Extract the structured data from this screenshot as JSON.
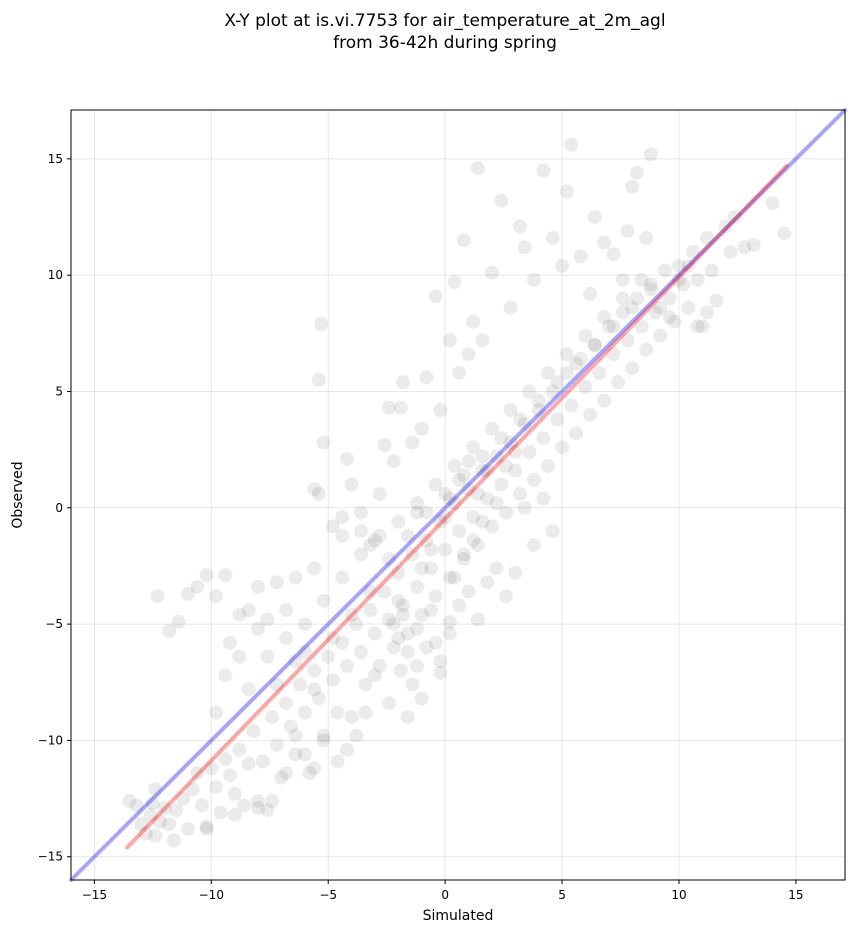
{
  "chart_data": {
    "type": "scatter",
    "title_lines": [
      "X-Y plot at is.vi.7753 for air_temperature_at_2m_agl",
      "from 36-42h during spring"
    ],
    "xlabel": "Simulated",
    "ylabel": "Observed",
    "xlim": [
      -16,
      17.1
    ],
    "ylim": [
      -16,
      17.1
    ],
    "xticks": [
      -15,
      -10,
      -5,
      0,
      5,
      10,
      15
    ],
    "yticks": [
      -15,
      -10,
      -5,
      0,
      5,
      10,
      15
    ],
    "xtick_labels": [
      "−15",
      "−10",
      "−5",
      "0",
      "5",
      "10",
      "15"
    ],
    "ytick_labels": [
      "−15",
      "−10",
      "−5",
      "0",
      "5",
      "10",
      "15"
    ],
    "grid": true,
    "point_color": "#000000",
    "point_opacity": 0.08,
    "lines": [
      {
        "kind": "identity",
        "color": "#0000ff",
        "opacity": 0.35,
        "x": [
          -16,
          17.1
        ],
        "y": [
          -16,
          17.1
        ]
      },
      {
        "kind": "fit",
        "color": "#ff0000",
        "opacity": 0.35,
        "x": [
          -13.6,
          14.6
        ],
        "y": [
          -14.6,
          14.7
        ]
      }
    ],
    "points": [
      [
        -13.5,
        -12.6
      ],
      [
        -13.2,
        -12.8
      ],
      [
        -13.0,
        -13.6
      ],
      [
        -12.8,
        -14.0
      ],
      [
        -12.6,
        -13.2
      ],
      [
        -12.5,
        -12.7
      ],
      [
        -12.4,
        -14.1
      ],
      [
        -12.2,
        -13.5
      ],
      [
        -12.4,
        -12.1
      ],
      [
        -12.0,
        -12.9
      ],
      [
        -11.8,
        -13.6
      ],
      [
        -11.6,
        -14.3
      ],
      [
        -11.5,
        -13.0
      ],
      [
        -11.2,
        -12.5
      ],
      [
        -11.0,
        -13.8
      ],
      [
        -10.8,
        -12.1
      ],
      [
        -10.6,
        -11.4
      ],
      [
        -10.4,
        -12.8
      ],
      [
        -10.2,
        -13.7
      ],
      [
        -10.0,
        -11.2
      ],
      [
        -9.8,
        -12.0
      ],
      [
        -9.6,
        -13.1
      ],
      [
        -9.4,
        -10.8
      ],
      [
        -9.2,
        -11.5
      ],
      [
        -9.0,
        -12.3
      ],
      [
        -8.8,
        -10.4
      ],
      [
        -8.6,
        -12.8
      ],
      [
        -8.4,
        -11.0
      ],
      [
        -8.2,
        -9.6
      ],
      [
        -8.0,
        -12.6
      ],
      [
        -7.8,
        -10.9
      ],
      [
        -7.6,
        -13.0
      ],
      [
        -7.4,
        -9.0
      ],
      [
        -7.2,
        -10.2
      ],
      [
        -7.0,
        -11.6
      ],
      [
        -6.8,
        -8.4
      ],
      [
        -6.6,
        -9.4
      ],
      [
        -6.4,
        -10.6
      ],
      [
        -6.2,
        -7.6
      ],
      [
        -6.0,
        -8.8
      ],
      [
        -5.8,
        -11.4
      ],
      [
        -5.6,
        -7.0
      ],
      [
        -5.4,
        -8.2
      ],
      [
        -5.2,
        -9.8
      ],
      [
        -5.0,
        -6.4
      ],
      [
        -4.8,
        -7.4
      ],
      [
        -4.6,
        -8.8
      ],
      [
        -4.4,
        -5.8
      ],
      [
        -4.2,
        -6.8
      ],
      [
        -4.0,
        -9.0
      ],
      [
        -3.8,
        -5.0
      ],
      [
        -3.6,
        -6.2
      ],
      [
        -3.4,
        -7.6
      ],
      [
        -3.2,
        -4.4
      ],
      [
        -3.0,
        -5.4
      ],
      [
        -2.8,
        -6.8
      ],
      [
        -2.6,
        -3.6
      ],
      [
        -2.4,
        -4.8
      ],
      [
        -2.2,
        -6.0
      ],
      [
        -2.0,
        -2.8
      ],
      [
        -1.8,
        -4.2
      ],
      [
        -1.6,
        -5.4
      ],
      [
        -1.4,
        -2.0
      ],
      [
        -1.2,
        -3.4
      ],
      [
        -1.0,
        -4.6
      ],
      [
        -0.8,
        -1.4
      ],
      [
        -0.6,
        -2.6
      ],
      [
        -0.4,
        -3.8
      ],
      [
        -0.2,
        -0.6
      ],
      [
        0.0,
        -1.8
      ],
      [
        0.2,
        -3.0
      ],
      [
        0.4,
        0.2
      ],
      [
        0.6,
        -1.0
      ],
      [
        0.8,
        -2.2
      ],
      [
        1.0,
        0.8
      ],
      [
        1.2,
        -0.4
      ],
      [
        1.4,
        -1.6
      ],
      [
        1.6,
        1.6
      ],
      [
        1.8,
        0.4
      ],
      [
        2.0,
        -0.8
      ],
      [
        2.2,
        2.2
      ],
      [
        2.4,
        1.0
      ],
      [
        2.6,
        -0.2
      ],
      [
        2.8,
        2.8
      ],
      [
        3.0,
        1.6
      ],
      [
        3.2,
        0.6
      ],
      [
        3.4,
        3.6
      ],
      [
        3.6,
        2.4
      ],
      [
        3.8,
        1.2
      ],
      [
        4.0,
        4.2
      ],
      [
        4.2,
        3.0
      ],
      [
        4.4,
        1.8
      ],
      [
        4.6,
        5.0
      ],
      [
        4.8,
        3.8
      ],
      [
        5.0,
        2.6
      ],
      [
        5.2,
        5.8
      ],
      [
        5.4,
        4.4
      ],
      [
        5.6,
        3.2
      ],
      [
        5.8,
        6.4
      ],
      [
        6.0,
        5.2
      ],
      [
        6.2,
        4.0
      ],
      [
        6.4,
        7.0
      ],
      [
        6.6,
        5.8
      ],
      [
        6.8,
        4.6
      ],
      [
        7.0,
        7.8
      ],
      [
        7.2,
        6.6
      ],
      [
        7.4,
        5.4
      ],
      [
        7.6,
        8.4
      ],
      [
        7.8,
        7.2
      ],
      [
        8.0,
        6.0
      ],
      [
        8.2,
        9.0
      ],
      [
        8.4,
        7.8
      ],
      [
        8.6,
        6.8
      ],
      [
        8.8,
        9.6
      ],
      [
        9.0,
        8.4
      ],
      [
        9.2,
        7.4
      ],
      [
        9.4,
        10.2
      ],
      [
        9.6,
        9.0
      ],
      [
        9.8,
        8.0
      ],
      [
        10.0,
        10.4
      ],
      [
        10.2,
        9.6
      ],
      [
        10.4,
        8.6
      ],
      [
        10.6,
        11.0
      ],
      [
        10.8,
        9.8
      ],
      [
        11.0,
        7.8
      ],
      [
        11.2,
        11.6
      ],
      [
        11.4,
        10.2
      ],
      [
        11.6,
        8.9
      ],
      [
        12.0,
        12.1
      ],
      [
        12.2,
        11.0
      ],
      [
        12.4,
        12.5
      ],
      [
        12.8,
        11.2
      ],
      [
        13.2,
        11.3
      ],
      [
        14.0,
        13.1
      ],
      [
        14.5,
        11.8
      ],
      [
        -12.3,
        -3.8
      ],
      [
        -11.8,
        -5.3
      ],
      [
        -11.4,
        -4.9
      ],
      [
        -11.0,
        -3.7
      ],
      [
        -10.6,
        -3.4
      ],
      [
        -10.2,
        -2.9
      ],
      [
        -9.8,
        -3.8
      ],
      [
        -9.4,
        -2.9
      ],
      [
        -9.2,
        -5.8
      ],
      [
        -8.8,
        -4.6
      ],
      [
        -8.4,
        -4.4
      ],
      [
        -8.0,
        -3.4
      ],
      [
        -7.6,
        -4.8
      ],
      [
        -7.2,
        -3.2
      ],
      [
        -6.8,
        -5.6
      ],
      [
        -6.4,
        -3.0
      ],
      [
        -6.0,
        -6.2
      ],
      [
        -5.6,
        -2.6
      ],
      [
        -5.4,
        5.5
      ],
      [
        -5.3,
        7.9
      ],
      [
        -5.2,
        2.8
      ],
      [
        -5.6,
        0.8
      ],
      [
        -5.4,
        0.6
      ],
      [
        -4.8,
        -0.8
      ],
      [
        -4.4,
        -0.4
      ],
      [
        -4.2,
        2.1
      ],
      [
        -4.0,
        1.0
      ],
      [
        -3.6,
        -1.0
      ],
      [
        -3.2,
        -1.6
      ],
      [
        -2.8,
        0.6
      ],
      [
        -2.6,
        2.7
      ],
      [
        -2.4,
        4.3
      ],
      [
        -2.2,
        2.0
      ],
      [
        -1.9,
        4.3
      ],
      [
        -1.8,
        5.4
      ],
      [
        -1.4,
        2.8
      ],
      [
        -1.2,
        -0.2
      ],
      [
        -1.0,
        3.4
      ],
      [
        -0.8,
        5.6
      ],
      [
        -0.4,
        9.1
      ],
      [
        -0.2,
        4.2
      ],
      [
        0.2,
        7.2
      ],
      [
        0.4,
        9.7
      ],
      [
        0.6,
        5.8
      ],
      [
        0.8,
        11.5
      ],
      [
        1.0,
        6.6
      ],
      [
        1.2,
        8.0
      ],
      [
        1.4,
        14.6
      ],
      [
        1.6,
        7.2
      ],
      [
        2.0,
        10.1
      ],
      [
        2.4,
        13.2
      ],
      [
        2.8,
        8.6
      ],
      [
        3.2,
        12.1
      ],
      [
        3.4,
        11.2
      ],
      [
        3.8,
        9.8
      ],
      [
        4.2,
        14.5
      ],
      [
        4.6,
        11.6
      ],
      [
        5.0,
        10.4
      ],
      [
        5.2,
        13.6
      ],
      [
        5.4,
        15.6
      ],
      [
        5.8,
        10.8
      ],
      [
        6.2,
        9.2
      ],
      [
        6.4,
        12.5
      ],
      [
        6.8,
        11.4
      ],
      [
        7.2,
        10.9
      ],
      [
        7.6,
        9.8
      ],
      [
        7.8,
        11.9
      ],
      [
        8.0,
        13.8
      ],
      [
        8.2,
        14.4
      ],
      [
        8.6,
        11.6
      ],
      [
        8.8,
        15.2
      ],
      [
        9.2,
        8.6
      ],
      [
        9.6,
        8.2
      ],
      [
        10.0,
        9.8
      ],
      [
        10.4,
        10.4
      ],
      [
        10.8,
        7.8
      ],
      [
        11.2,
        8.4
      ],
      [
        -9.8,
        -8.8
      ],
      [
        -9.4,
        -7.2
      ],
      [
        -8.8,
        -6.4
      ],
      [
        -8.4,
        -7.8
      ],
      [
        -8.0,
        -5.2
      ],
      [
        -7.6,
        -6.4
      ],
      [
        -7.2,
        -7.6
      ],
      [
        -6.8,
        -4.4
      ],
      [
        -6.4,
        -6.6
      ],
      [
        -6.0,
        -5.0
      ],
      [
        -5.6,
        -7.8
      ],
      [
        -5.2,
        -4.0
      ],
      [
        -4.8,
        -5.6
      ],
      [
        -4.4,
        -3.0
      ],
      [
        -4.0,
        -4.6
      ],
      [
        -3.6,
        -2.0
      ],
      [
        -3.2,
        -3.6
      ],
      [
        -2.8,
        -1.2
      ],
      [
        -2.4,
        -2.2
      ],
      [
        -2.0,
        -0.6
      ],
      [
        -1.6,
        -1.2
      ],
      [
        -1.2,
        0.2
      ],
      [
        -0.8,
        -0.2
      ],
      [
        -0.4,
        1.0
      ],
      [
        0.0,
        0.6
      ],
      [
        0.4,
        1.8
      ],
      [
        0.8,
        1.4
      ],
      [
        1.2,
        2.6
      ],
      [
        1.6,
        2.2
      ],
      [
        2.0,
        3.4
      ],
      [
        2.4,
        3.0
      ],
      [
        2.8,
        4.2
      ],
      [
        3.2,
        3.8
      ],
      [
        3.6,
        5.0
      ],
      [
        4.0,
        4.6
      ],
      [
        4.4,
        5.8
      ],
      [
        4.8,
        5.4
      ],
      [
        5.2,
        6.6
      ],
      [
        5.6,
        6.2
      ],
      [
        6.0,
        7.4
      ],
      [
        6.4,
        7.0
      ],
      [
        6.8,
        8.2
      ],
      [
        7.2,
        7.8
      ],
      [
        7.6,
        9.0
      ],
      [
        8.0,
        8.6
      ],
      [
        8.4,
        9.8
      ],
      [
        8.8,
        9.4
      ],
      [
        -2.2,
        -5.0
      ],
      [
        -2.0,
        -5.6
      ],
      [
        -1.8,
        -4.6
      ],
      [
        -1.6,
        -6.2
      ],
      [
        -1.9,
        -7.0
      ],
      [
        -1.4,
        -7.6
      ],
      [
        -1.2,
        -6.8
      ],
      [
        -1.0,
        -8.2
      ],
      [
        -2.4,
        -8.4
      ],
      [
        -1.6,
        -9.0
      ],
      [
        -2.0,
        -4.0
      ],
      [
        -1.2,
        -5.2
      ],
      [
        -0.8,
        -6.0
      ],
      [
        -0.6,
        -4.4
      ],
      [
        -0.4,
        -5.8
      ],
      [
        -0.2,
        -6.6
      ],
      [
        0.2,
        -5.4
      ],
      [
        0.6,
        -4.2
      ],
      [
        1.0,
        -3.6
      ],
      [
        1.4,
        -4.8
      ],
      [
        1.8,
        -3.2
      ],
      [
        2.2,
        -2.6
      ],
      [
        0.4,
        -3.0
      ],
      [
        0.8,
        -2.0
      ],
      [
        1.2,
        -1.4
      ],
      [
        1.6,
        -0.6
      ],
      [
        0.0,
        -0.4
      ],
      [
        0.2,
        0.4
      ],
      [
        0.6,
        1.2
      ],
      [
        1.0,
        2.0
      ],
      [
        1.4,
        0.6
      ],
      [
        1.8,
        1.6
      ],
      [
        2.2,
        0.2
      ],
      [
        2.6,
        1.8
      ],
      [
        3.0,
        2.4
      ],
      [
        3.4,
        0.0
      ],
      [
        3.8,
        -1.6
      ],
      [
        4.2,
        0.4
      ],
      [
        4.6,
        -1.0
      ],
      [
        2.6,
        -3.8
      ],
      [
        3.0,
        -2.8
      ],
      [
        -3.0,
        -7.2
      ],
      [
        -3.4,
        -8.8
      ],
      [
        -3.8,
        -9.8
      ],
      [
        -4.2,
        -10.4
      ],
      [
        -4.6,
        -10.9
      ],
      [
        -5.2,
        -10.0
      ],
      [
        -5.6,
        -11.2
      ],
      [
        -6.0,
        -10.6
      ],
      [
        -6.4,
        -9.8
      ],
      [
        -6.8,
        -11.4
      ],
      [
        -7.4,
        -12.6
      ],
      [
        -8.0,
        -12.9
      ],
      [
        -9.0,
        -13.2
      ],
      [
        -10.2,
        -13.8
      ],
      [
        -0.2,
        -7.1
      ],
      [
        0.2,
        -4.9
      ],
      [
        -1.0,
        -2.6
      ],
      [
        -0.6,
        -1.8
      ],
      [
        -3.0,
        -1.4
      ],
      [
        -3.6,
        -0.2
      ],
      [
        -4.4,
        -1.2
      ]
    ]
  }
}
